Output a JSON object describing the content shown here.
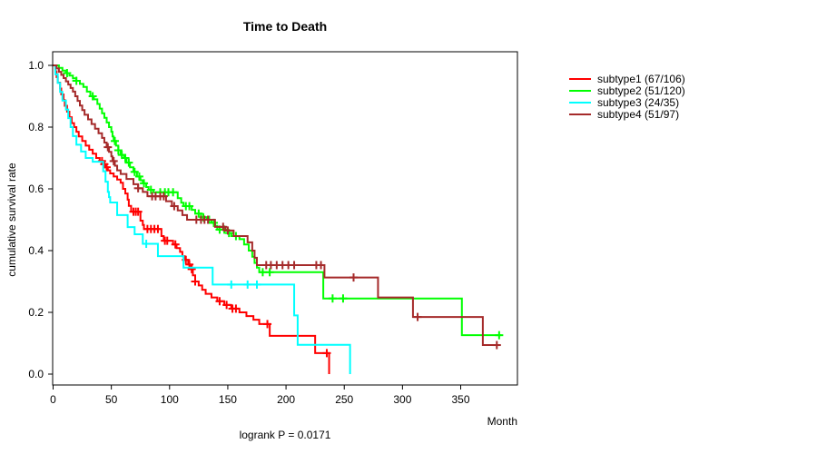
{
  "title": "Time to Death",
  "subtitle": "logrank P = 0.0171",
  "x_axis_label": "Month",
  "y_axis_label": "cumulative survival rate",
  "chart_data": {
    "type": "line",
    "variant": "kaplan-meier-step",
    "title": "Time to Death",
    "xlabel": "Month",
    "ylabel": "cumulative survival rate",
    "annotation": "logrank P = 0.0171",
    "xlim": [
      0,
      398
    ],
    "ylim": [
      0.0,
      1.0
    ],
    "x_ticks": [
      0,
      50,
      100,
      150,
      200,
      250,
      300,
      350
    ],
    "y_ticks": [
      "0.0",
      "0.2",
      "0.4",
      "0.6",
      "0.8",
      "1.0"
    ],
    "grid": false,
    "legend_position": "right-outside",
    "series": [
      {
        "name": "subtype1",
        "label": "subtype1 (67/106)",
        "events": 67,
        "n": 106,
        "color": "#FF0000",
        "end_time": 237,
        "steps": [
          [
            0,
            1.0
          ],
          [
            2,
            0.981
          ],
          [
            3,
            0.962
          ],
          [
            4,
            0.944
          ],
          [
            6,
            0.925
          ],
          [
            7,
            0.906
          ],
          [
            9,
            0.888
          ],
          [
            10,
            0.869
          ],
          [
            12,
            0.85
          ],
          [
            14,
            0.832
          ],
          [
            16,
            0.813
          ],
          [
            18,
            0.8
          ],
          [
            20,
            0.785
          ],
          [
            22,
            0.77
          ],
          [
            25,
            0.755
          ],
          [
            28,
            0.74
          ],
          [
            31,
            0.727
          ],
          [
            34,
            0.714
          ],
          [
            37,
            0.7
          ],
          [
            40,
            0.69
          ],
          [
            43,
            0.68
          ],
          [
            45,
            0.67
          ],
          [
            47,
            0.66
          ],
          [
            49,
            0.65
          ],
          [
            52,
            0.64
          ],
          [
            55,
            0.63
          ],
          [
            58,
            0.62
          ],
          [
            60,
            0.6
          ],
          [
            62,
            0.585
          ],
          [
            64,
            0.565
          ],
          [
            65,
            0.545
          ],
          [
            67,
            0.526
          ],
          [
            75,
            0.497
          ],
          [
            77,
            0.483
          ],
          [
            78,
            0.47
          ],
          [
            93,
            0.447
          ],
          [
            95,
            0.432
          ],
          [
            103,
            0.42
          ],
          [
            106,
            0.408
          ],
          [
            109,
            0.396
          ],
          [
            111,
            0.382
          ],
          [
            113,
            0.37
          ],
          [
            116,
            0.355
          ],
          [
            118,
            0.34
          ],
          [
            120,
            0.32
          ],
          [
            122,
            0.3
          ],
          [
            125,
            0.287
          ],
          [
            128,
            0.273
          ],
          [
            131,
            0.26
          ],
          [
            136,
            0.248
          ],
          [
            141,
            0.236
          ],
          [
            147,
            0.224
          ],
          [
            153,
            0.212
          ],
          [
            160,
            0.2
          ],
          [
            166,
            0.188
          ],
          [
            172,
            0.176
          ],
          [
            177,
            0.162
          ],
          [
            186,
            0.124
          ],
          [
            225,
            0.068
          ],
          [
            237,
            0.0
          ]
        ],
        "censor_times": [
          42,
          44,
          46,
          69,
          71,
          73,
          81,
          84,
          87,
          90,
          96,
          98,
          105,
          114,
          117,
          119,
          122,
          143,
          149,
          154,
          157,
          184,
          235
        ]
      },
      {
        "name": "subtype2",
        "label": "subtype2 (51/120)",
        "events": 51,
        "n": 120,
        "color": "#00FF00",
        "end_time": 385,
        "steps": [
          [
            0,
            1.0
          ],
          [
            5,
            0.992
          ],
          [
            8,
            0.983
          ],
          [
            11,
            0.975
          ],
          [
            14,
            0.967
          ],
          [
            17,
            0.958
          ],
          [
            20,
            0.95
          ],
          [
            23,
            0.94
          ],
          [
            26,
            0.93
          ],
          [
            29,
            0.915
          ],
          [
            32,
            0.9
          ],
          [
            35,
            0.89
          ],
          [
            38,
            0.875
          ],
          [
            40,
            0.86
          ],
          [
            42,
            0.845
          ],
          [
            44,
            0.83
          ],
          [
            46,
            0.815
          ],
          [
            48,
            0.8
          ],
          [
            50,
            0.785
          ],
          [
            51,
            0.77
          ],
          [
            52,
            0.755
          ],
          [
            54,
            0.74
          ],
          [
            56,
            0.725
          ],
          [
            58,
            0.71
          ],
          [
            61,
            0.7
          ],
          [
            63,
            0.685
          ],
          [
            66,
            0.67
          ],
          [
            69,
            0.655
          ],
          [
            72,
            0.64
          ],
          [
            75,
            0.628
          ],
          [
            77,
            0.618
          ],
          [
            80,
            0.606
          ],
          [
            82,
            0.597
          ],
          [
            86,
            0.589
          ],
          [
            107,
            0.57
          ],
          [
            110,
            0.555
          ],
          [
            112,
            0.544
          ],
          [
            119,
            0.532
          ],
          [
            122,
            0.52
          ],
          [
            127,
            0.508
          ],
          [
            132,
            0.5
          ],
          [
            136,
            0.49
          ],
          [
            139,
            0.48
          ],
          [
            141,
            0.468
          ],
          [
            150,
            0.457
          ],
          [
            153,
            0.447
          ],
          [
            160,
            0.437
          ],
          [
            164,
            0.42
          ],
          [
            168,
            0.4
          ],
          [
            171,
            0.38
          ],
          [
            173,
            0.36
          ],
          [
            175,
            0.345
          ],
          [
            177,
            0.33
          ],
          [
            232,
            0.245
          ],
          [
            351,
            0.126
          ]
        ],
        "censor_times": [
          12,
          20,
          34,
          53,
          56,
          59,
          62,
          65,
          70,
          74,
          78,
          84,
          92,
          96,
          99,
          103,
          114,
          117,
          125,
          129,
          134,
          138,
          143,
          147,
          151,
          157,
          180,
          186,
          240,
          249,
          383
        ]
      },
      {
        "name": "subtype3",
        "label": "subtype3 (24/35)",
        "events": 24,
        "n": 35,
        "color": "#00FFFF",
        "end_time": 255,
        "steps": [
          [
            0,
            1.0
          ],
          [
            2,
            0.971
          ],
          [
            4,
            0.943
          ],
          [
            6,
            0.914
          ],
          [
            8,
            0.886
          ],
          [
            11,
            0.857
          ],
          [
            13,
            0.829
          ],
          [
            15,
            0.8
          ],
          [
            17,
            0.771
          ],
          [
            20,
            0.743
          ],
          [
            24,
            0.721
          ],
          [
            28,
            0.7
          ],
          [
            34,
            0.688
          ],
          [
            43,
            0.657
          ],
          [
            45,
            0.623
          ],
          [
            47,
            0.59
          ],
          [
            48,
            0.573
          ],
          [
            49,
            0.556
          ],
          [
            55,
            0.515
          ],
          [
            64,
            0.476
          ],
          [
            70,
            0.453
          ],
          [
            77,
            0.422
          ],
          [
            90,
            0.382
          ],
          [
            112,
            0.345
          ],
          [
            137,
            0.29
          ],
          [
            207,
            0.19
          ],
          [
            210,
            0.095
          ],
          [
            255,
            0.0
          ]
        ],
        "censor_times": [
          80,
          153,
          167,
          175
        ]
      },
      {
        "name": "subtype4",
        "label": "subtype4 (51/97)",
        "events": 51,
        "n": 97,
        "color": "#A52A2A",
        "end_time": 383,
        "steps": [
          [
            0,
            1.0
          ],
          [
            3,
            0.99
          ],
          [
            5,
            0.979
          ],
          [
            7,
            0.969
          ],
          [
            9,
            0.959
          ],
          [
            11,
            0.948
          ],
          [
            13,
            0.938
          ],
          [
            15,
            0.927
          ],
          [
            17,
            0.915
          ],
          [
            19,
            0.9
          ],
          [
            21,
            0.885
          ],
          [
            23,
            0.87
          ],
          [
            25,
            0.855
          ],
          [
            27,
            0.84
          ],
          [
            30,
            0.825
          ],
          [
            33,
            0.81
          ],
          [
            36,
            0.795
          ],
          [
            39,
            0.78
          ],
          [
            42,
            0.765
          ],
          [
            44,
            0.75
          ],
          [
            46,
            0.735
          ],
          [
            48,
            0.72
          ],
          [
            50,
            0.705
          ],
          [
            51,
            0.69
          ],
          [
            53,
            0.675
          ],
          [
            55,
            0.66
          ],
          [
            58,
            0.648
          ],
          [
            63,
            0.632
          ],
          [
            69,
            0.615
          ],
          [
            73,
            0.602
          ],
          [
            77,
            0.59
          ],
          [
            81,
            0.576
          ],
          [
            97,
            0.56
          ],
          [
            102,
            0.544
          ],
          [
            107,
            0.53
          ],
          [
            111,
            0.515
          ],
          [
            115,
            0.5
          ],
          [
            139,
            0.477
          ],
          [
            148,
            0.465
          ],
          [
            155,
            0.447
          ],
          [
            167,
            0.427
          ],
          [
            171,
            0.4
          ],
          [
            173,
            0.377
          ],
          [
            175,
            0.353
          ],
          [
            233,
            0.313
          ],
          [
            279,
            0.248
          ],
          [
            309,
            0.185
          ],
          [
            369,
            0.094
          ]
        ],
        "censor_times": [
          47,
          52,
          73,
          85,
          88,
          92,
          95,
          104,
          123,
          127,
          130,
          133,
          146,
          150,
          183,
          187,
          192,
          197,
          202,
          207,
          226,
          230,
          258,
          313,
          381
        ]
      }
    ]
  }
}
